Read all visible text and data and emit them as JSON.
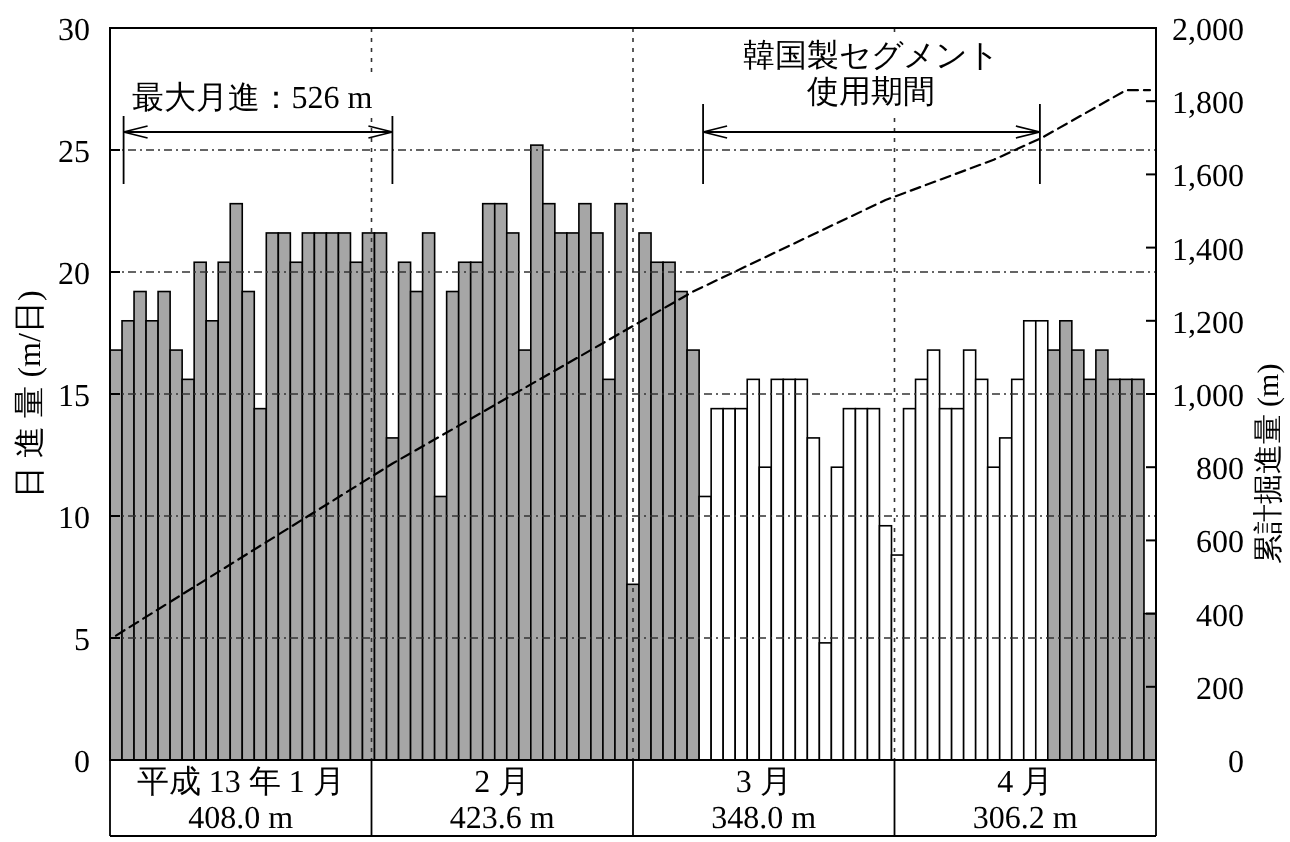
{
  "chart_data": {
    "type": "bar",
    "ylabel": "日 進 量 (m/日)",
    "y2label": "累計掘進量 (m)",
    "categories": [
      null,
      null,
      null,
      null,
      null,
      null,
      null,
      null,
      null,
      null,
      null,
      null,
      null,
      null,
      null,
      null,
      null,
      null,
      null,
      null,
      null,
      null,
      null,
      null,
      null,
      null,
      null,
      null,
      null,
      null,
      null,
      null,
      null,
      null,
      null,
      null,
      null,
      null,
      null,
      null,
      null,
      null,
      null,
      null,
      null,
      null,
      null,
      null,
      null,
      null,
      null,
      null,
      null,
      null,
      null,
      null,
      null,
      null,
      null,
      null,
      null,
      null,
      null,
      null,
      null,
      null,
      null,
      null,
      null,
      null,
      null,
      null,
      null,
      null,
      null,
      null,
      null,
      null,
      null,
      null,
      null,
      null,
      null,
      null,
      null,
      null,
      null
    ],
    "ylim": [
      0,
      30
    ],
    "yticks": [
      0,
      5,
      10,
      15,
      20,
      25,
      30
    ],
    "y2lim": [
      0,
      2000
    ],
    "y2ticks": [
      0,
      200,
      400,
      600,
      800,
      {
        "value": 1000,
        "label": "1,000"
      },
      {
        "value": 1200,
        "label": "1,200"
      },
      {
        "value": 1400,
        "label": "1,400"
      },
      {
        "value": 1600,
        "label": "1,600"
      },
      {
        "value": 1800,
        "label": "1,800"
      },
      {
        "value": 2000,
        "label": "2,000"
      }
    ],
    "grid": "y",
    "series": [
      {
        "values": [
          16.8,
          18,
          19.2,
          18,
          19.2,
          16.8,
          15.6,
          20.4,
          18,
          20.4,
          22.8,
          19.2,
          14.4,
          21.6,
          21.6,
          20.4,
          21.6,
          21.6,
          21.6,
          21.6,
          20.4,
          21.6,
          21.6,
          13.2,
          20.4,
          19.2,
          21.6,
          10.8,
          19.2,
          20.4,
          20.4,
          22.8,
          22.8,
          21.6,
          16.8,
          25.2,
          22.8,
          21.6,
          21.6,
          22.8,
          21.6,
          15.6,
          22.8,
          7.2,
          21.6,
          20.4,
          20.4,
          19.2,
          16.8,
          10.8,
          14.4,
          14.4,
          14.4,
          15.6,
          12.0,
          15.6,
          15.6,
          15.6,
          13.2,
          4.8,
          12.0,
          14.4,
          14.4,
          14.4,
          9.6,
          8.4,
          14.4,
          15.6,
          16.8,
          14.4,
          14.4,
          16.8,
          15.6,
          12.0,
          13.2,
          15.6,
          18.0,
          18.0,
          16.8,
          18.0,
          16.8,
          15.6,
          16.8,
          15.6,
          15.6,
          15.6,
          6.0
        ],
        "colors": [
          "#a6a6a6",
          "#a6a6a6",
          "#a6a6a6",
          "#a6a6a6",
          "#a6a6a6",
          "#a6a6a6",
          "#a6a6a6",
          "#a6a6a6",
          "#a6a6a6",
          "#a6a6a6",
          "#a6a6a6",
          "#a6a6a6",
          "#a6a6a6",
          "#a6a6a6",
          "#a6a6a6",
          "#a6a6a6",
          "#a6a6a6",
          "#a6a6a6",
          "#a6a6a6",
          "#a6a6a6",
          "#a6a6a6",
          "#a6a6a6",
          "#a6a6a6",
          "#a6a6a6",
          "#a6a6a6",
          "#a6a6a6",
          "#a6a6a6",
          "#a6a6a6",
          "#a6a6a6",
          "#a6a6a6",
          "#a6a6a6",
          "#a6a6a6",
          "#a6a6a6",
          "#a6a6a6",
          "#a6a6a6",
          "#a6a6a6",
          "#a6a6a6",
          "#a6a6a6",
          "#a6a6a6",
          "#a6a6a6",
          "#a6a6a6",
          "#a6a6a6",
          "#a6a6a6",
          "#a6a6a6",
          "#a6a6a6",
          "#a6a6a6",
          "#a6a6a6",
          "#a6a6a6",
          "#a6a6a6",
          "#ffffff",
          "#ffffff",
          "#ffffff",
          "#ffffff",
          "#ffffff",
          "#ffffff",
          "#ffffff",
          "#ffffff",
          "#ffffff",
          "#ffffff",
          "#ffffff",
          "#ffffff",
          "#ffffff",
          "#ffffff",
          "#ffffff",
          "#ffffff",
          "#ffffff",
          "#ffffff",
          "#ffffff",
          "#ffffff",
          "#ffffff",
          "#ffffff",
          "#ffffff",
          "#ffffff",
          "#ffffff",
          "#ffffff",
          "#ffffff",
          "#ffffff",
          "#ffffff",
          "#a6a6a6",
          "#a6a6a6",
          "#a6a6a6",
          "#a6a6a6",
          "#a6a6a6",
          "#a6a6a6",
          "#a6a6a6",
          "#a6a6a6",
          "#a6a6a6"
        ]
      },
      {
        "type": "line",
        "axis": "y2",
        "color": "#000000",
        "line_style": "dashed",
        "values": [
          340,
          null,
          null,
          null,
          null,
          null,
          null,
          null,
          null,
          null,
          null,
          null,
          null,
          null,
          null,
          null,
          null,
          null,
          null,
          null,
          null,
          null,
          null,
          810,
          null,
          null,
          null,
          null,
          null,
          null,
          null,
          null,
          null,
          null,
          null,
          null,
          null,
          null,
          null,
          null,
          null,
          null,
          null,
          null,
          null,
          null,
          null,
          null,
          1280,
          null,
          null,
          null,
          null,
          null,
          null,
          null,
          null,
          null,
          null,
          null,
          null,
          null,
          null,
          null,
          1530,
          null,
          null,
          null,
          null,
          null,
          null,
          null,
          null,
          1640,
          null,
          null,
          null,
          1700,
          null,
          null,
          null,
          null,
          null,
          null,
          1830,
          null,
          1830
        ]
      }
    ],
    "annotations": [
      "最大月進：526 m",
      "韓国製セグメント",
      "使用期間",
      "平成 13 年 1 月\n408.0 m",
      "2 月\n423.6 m",
      "3 月\n348.0 m",
      "4 月\n306.2 m"
    ]
  }
}
